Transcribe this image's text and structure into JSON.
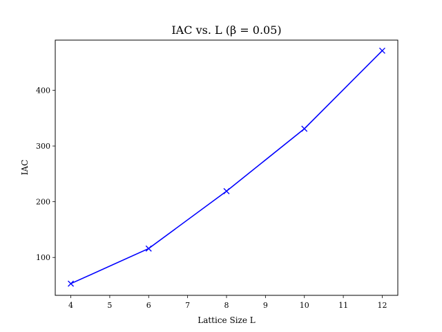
{
  "chart_data": {
    "type": "line",
    "title": "IAC vs. L (β = 0.05)",
    "xlabel": "Lattice Size L",
    "ylabel": "IAC",
    "xlim": [
      3.6,
      12.4
    ],
    "ylim": [
      32,
      490
    ],
    "xticks": [
      "4",
      "5",
      "6",
      "7",
      "8",
      "9",
      "10",
      "11",
      "12"
    ],
    "yticks": [
      "100",
      "200",
      "300",
      "400"
    ],
    "grid": false,
    "marker": "x",
    "color": "#0000ff",
    "x": [
      4,
      6,
      8,
      10,
      12
    ],
    "series": [
      {
        "values": [
          53,
          116,
          219,
          331,
          471
        ]
      }
    ]
  }
}
